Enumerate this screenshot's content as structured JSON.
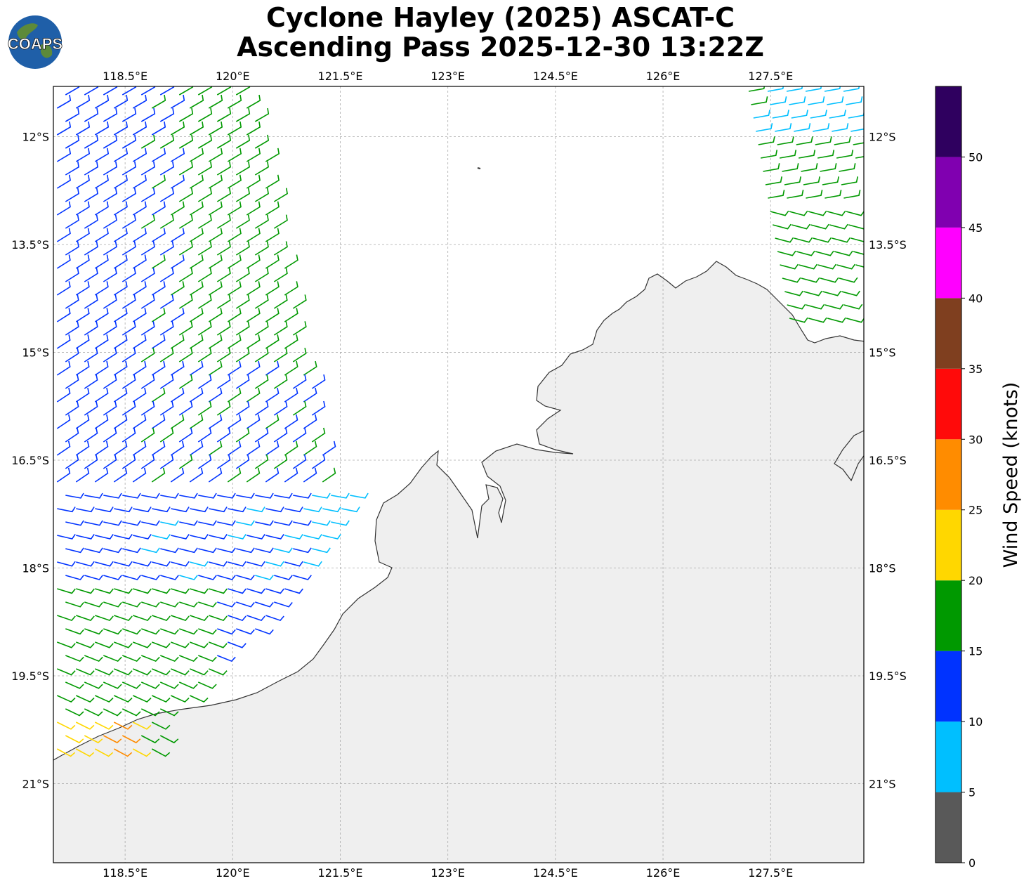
{
  "title": {
    "line1": "Cyclone Hayley (2025) ASCAT-C",
    "line2": "Ascending Pass 2025-12-30 13:22Z"
  },
  "logo": {
    "text": "COAPS",
    "ocean_color": "#1f5fa8",
    "land_color": "#5d8a3a"
  },
  "map": {
    "lon_range": [
      117.5,
      128.8
    ],
    "lat_range": [
      -22.1,
      -11.3
    ],
    "lon_ticks": [
      "118.5°E",
      "120°E",
      "121.5°E",
      "123°E",
      "124.5°E",
      "126°E",
      "127.5°E"
    ],
    "lon_tick_values": [
      118.5,
      120,
      121.5,
      123,
      124.5,
      126,
      127.5
    ],
    "lat_ticks": [
      "12°S",
      "13.5°S",
      "15°S",
      "16.5°S",
      "18°S",
      "19.5°S",
      "21°S"
    ],
    "lat_tick_values": [
      -12,
      -13.5,
      -15,
      -16.5,
      -18,
      -19.5,
      -21
    ],
    "gridlines": true,
    "land_color": "#efefef",
    "coast_color": "#333333"
  },
  "colorbar": {
    "label": "Wind Speed (knots)",
    "ticks": [
      "0",
      "5",
      "10",
      "15",
      "20",
      "25",
      "30",
      "35",
      "40",
      "45",
      "50"
    ],
    "bins": [
      {
        "min": 0,
        "max": 5,
        "color": "#595959"
      },
      {
        "min": 5,
        "max": 10,
        "color": "#00bfff"
      },
      {
        "min": 10,
        "max": 15,
        "color": "#0033ff"
      },
      {
        "min": 15,
        "max": 20,
        "color": "#009900"
      },
      {
        "min": 20,
        "max": 25,
        "color": "#ffd700"
      },
      {
        "min": 25,
        "max": 30,
        "color": "#ff8c00"
      },
      {
        "min": 30,
        "max": 35,
        "color": "#ff0a0a"
      },
      {
        "min": 35,
        "max": 40,
        "color": "#7f3f1f"
      },
      {
        "min": 40,
        "max": 45,
        "color": "#ff00ff"
      },
      {
        "min": 45,
        "max": 50,
        "color": "#8000b0"
      },
      {
        "min": 50,
        "max": 55,
        "color": "#2f005f"
      }
    ]
  }
}
